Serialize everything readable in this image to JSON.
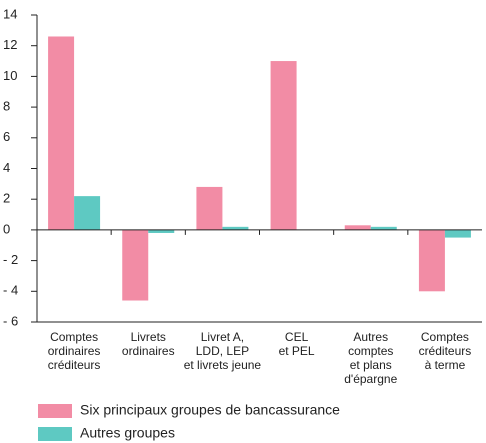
{
  "chart_data": {
    "type": "bar",
    "categories": [
      [
        "Comptes",
        "ordinaires",
        "créditeurs"
      ],
      [
        "Livrets",
        "ordinaires"
      ],
      [
        "Livret A,",
        "LDD, LEP",
        "et livrets jeune"
      ],
      [
        "CEL",
        "et PEL"
      ],
      [
        "Autres",
        "comptes",
        "et plans",
        "d'épargne"
      ],
      [
        "Comptes",
        "créditeurs",
        "à terme"
      ]
    ],
    "series": [
      {
        "name": "Six principaux groupes de bancassurance",
        "color": "#f28ca5",
        "values": [
          12.6,
          -4.6,
          2.8,
          11.0,
          0.3,
          -4.0
        ]
      },
      {
        "name": "Autres groupes",
        "color": "#5ec9c2",
        "values": [
          2.2,
          -0.2,
          0.2,
          0,
          0.2,
          -0.5
        ]
      }
    ],
    "ylim": [
      -6,
      14
    ],
    "yticks": [
      {
        "value": -6,
        "label": "- 6"
      },
      {
        "value": -4,
        "label": "- 4"
      },
      {
        "value": -2,
        "label": "- 2"
      },
      0,
      2,
      4,
      6,
      8,
      10,
      12,
      14
    ],
    "grid": false
  }
}
